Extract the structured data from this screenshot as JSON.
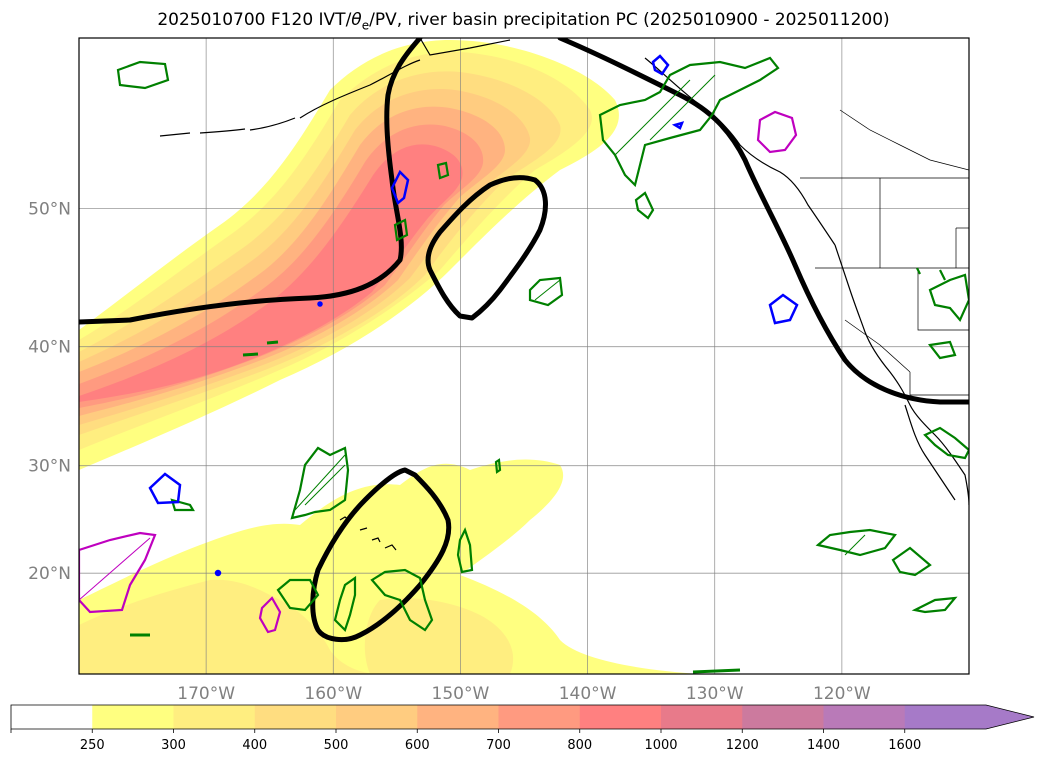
{
  "title": {
    "prefix": "2025010700 F120 IVT/",
    "theta": "θ",
    "theta_sub": "e",
    "suffix": "/PV, river basin precipitation PC (2025010900 - 2025011200)"
  },
  "map": {
    "lon_range": [
      -180,
      -110
    ],
    "lat_range": [
      10,
      60
    ],
    "lat_ticks": [
      {
        "value": 50,
        "label": "50°N"
      },
      {
        "value": 40,
        "label": "40°N"
      },
      {
        "value": 30,
        "label": "30°N"
      },
      {
        "value": 20,
        "label": "20°N"
      }
    ],
    "lon_ticks": [
      {
        "value": -170,
        "label": "170°W"
      },
      {
        "value": -160,
        "label": "160°W"
      },
      {
        "value": -150,
        "label": "150°W"
      },
      {
        "value": -140,
        "label": "140°W"
      },
      {
        "value": -130,
        "label": "130°W"
      },
      {
        "value": -120,
        "label": "120°W"
      }
    ],
    "grid": true,
    "colors": {
      "ivt_250": "#ffff80",
      "ivt_300": "#ffee80",
      "ivt_400": "#ffdd80",
      "ivt_500": "#ffcc80",
      "ivt_600": "#ffb380",
      "ivt_700": "#ff9a80",
      "ivt_800": "#ff8080",
      "pv_contour": "#000000",
      "precip_green": "#008000",
      "precip_blue": "#0000ff",
      "precip_magenta": "#bf00bf",
      "coastline": "#000000"
    }
  },
  "colorbar": {
    "levels": [
      "250",
      "300",
      "400",
      "500",
      "600",
      "700",
      "800",
      "1000",
      "1200",
      "1400",
      "1600"
    ],
    "colors": [
      "#ffffff",
      "#ffff80",
      "#ffee80",
      "#ffdd80",
      "#ffcc80",
      "#ffb380",
      "#ff9a80",
      "#ff8080",
      "#e87a8a",
      "#cc7a9e",
      "#b97ab8",
      "#a67ac8"
    ],
    "extend": "max"
  }
}
